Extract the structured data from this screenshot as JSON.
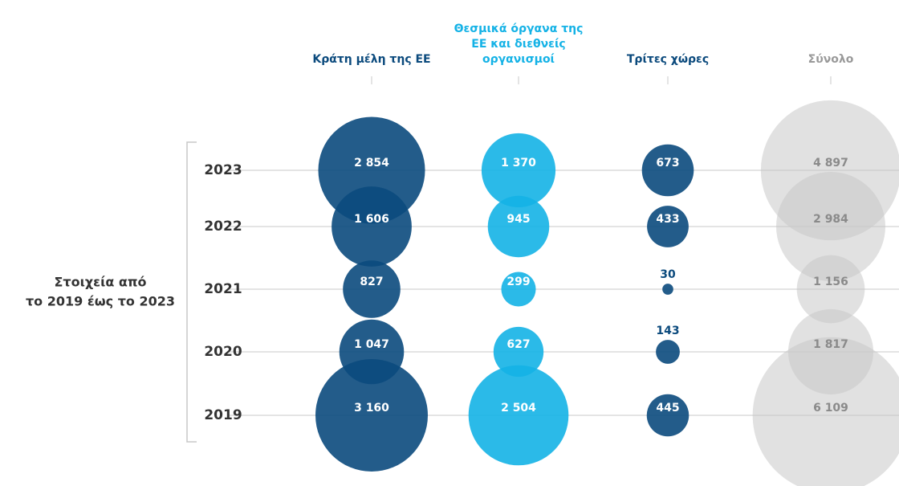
{
  "chart_data": {
    "type": "bubble",
    "annotation_lines": [
      "Στοιχεία από",
      "το 2019 έως το 2023"
    ],
    "categories": [
      "2023",
      "2022",
      "2021",
      "2020",
      "2019"
    ],
    "series": [
      {
        "name": "Κράτη μέλη της ΕΕ",
        "color": "#0b4a7d",
        "label_color": "#ffffff",
        "values": [
          2854,
          1606,
          827,
          1047,
          3160
        ],
        "value_labels": [
          "2 854",
          "1 606",
          "827",
          "1 047",
          "3 160"
        ]
      },
      {
        "name": "Θεσμικά όργανα της ΕΕ και διεθνείς οργανισμοί",
        "color": "#14b2e6",
        "label_color": "#ffffff",
        "values": [
          1370,
          945,
          299,
          627,
          2504
        ],
        "value_labels": [
          "1 370",
          "945",
          "299",
          "627",
          "2 504"
        ]
      },
      {
        "name": "Τρίτες χώρες",
        "color": "#0b4a7d",
        "label_color": "#ffffff",
        "values": [
          673,
          433,
          30,
          143,
          445
        ],
        "value_labels": [
          "673",
          "433",
          "30",
          "143",
          "445"
        ]
      },
      {
        "name": "Σύνολο",
        "color": "#c9c9c9",
        "label_color": "#8a8a8a",
        "values": [
          4897,
          2984,
          1156,
          1817,
          6109
        ],
        "value_labels": [
          "4 897",
          "2 984",
          "1 156",
          "1 817",
          "6 109"
        ]
      }
    ]
  }
}
